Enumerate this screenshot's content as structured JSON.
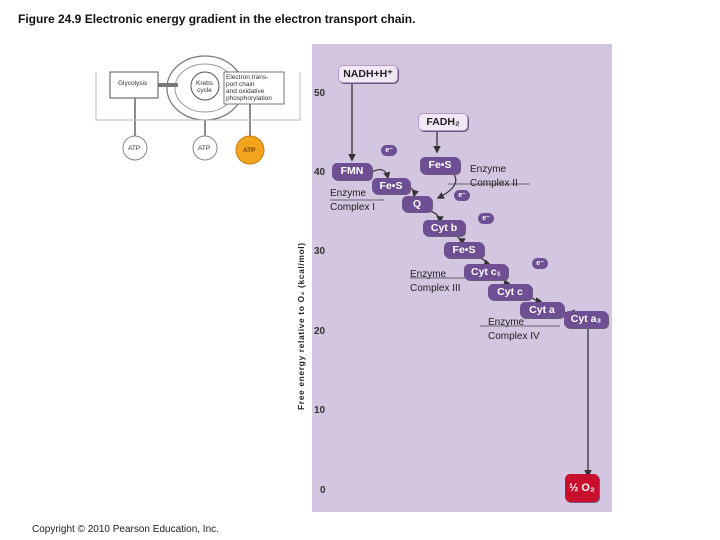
{
  "title": "Figure 24.9 Electronic energy gradient in the electron transport chain.",
  "copyright": "Copyright © 2010 Pearson Education, Inc.",
  "y_axis_label": "Free energy relative to O₂ (kcal/mol)",
  "ticks": [
    "50",
    "40",
    "30",
    "20",
    "10",
    "0"
  ],
  "inset": {
    "glycolysis": "Glycolysis",
    "krebs": "Krebs\ncycle",
    "etc": "Electron trans-\nport chain\nand oxidative\nphosphorylation",
    "atp1": "ATP",
    "atp2": "ATP",
    "atp3": "ATP"
  },
  "chain": {
    "nadh": "NADH+H⁺",
    "fadh": "FADH₂",
    "fmn": "FMN",
    "fes1": "Fe•S",
    "fes2": "Fe•S",
    "q": "Q",
    "cytb": "Cyt b",
    "fes3": "Fe•S",
    "cytc1": "Cyt c₁",
    "cytc": "Cyt c",
    "cyta": "Cyt a",
    "cyta3": "Cyt a₃",
    "o2": "½ O₂",
    "eminus": "e⁻"
  },
  "enzymes": {
    "c1": "Enzyme\nComplex I",
    "c2": "Enzyme\nComplex II",
    "c3": "Enzyme\nComplex III",
    "c4": "Enzyme\nComplex IV"
  }
}
